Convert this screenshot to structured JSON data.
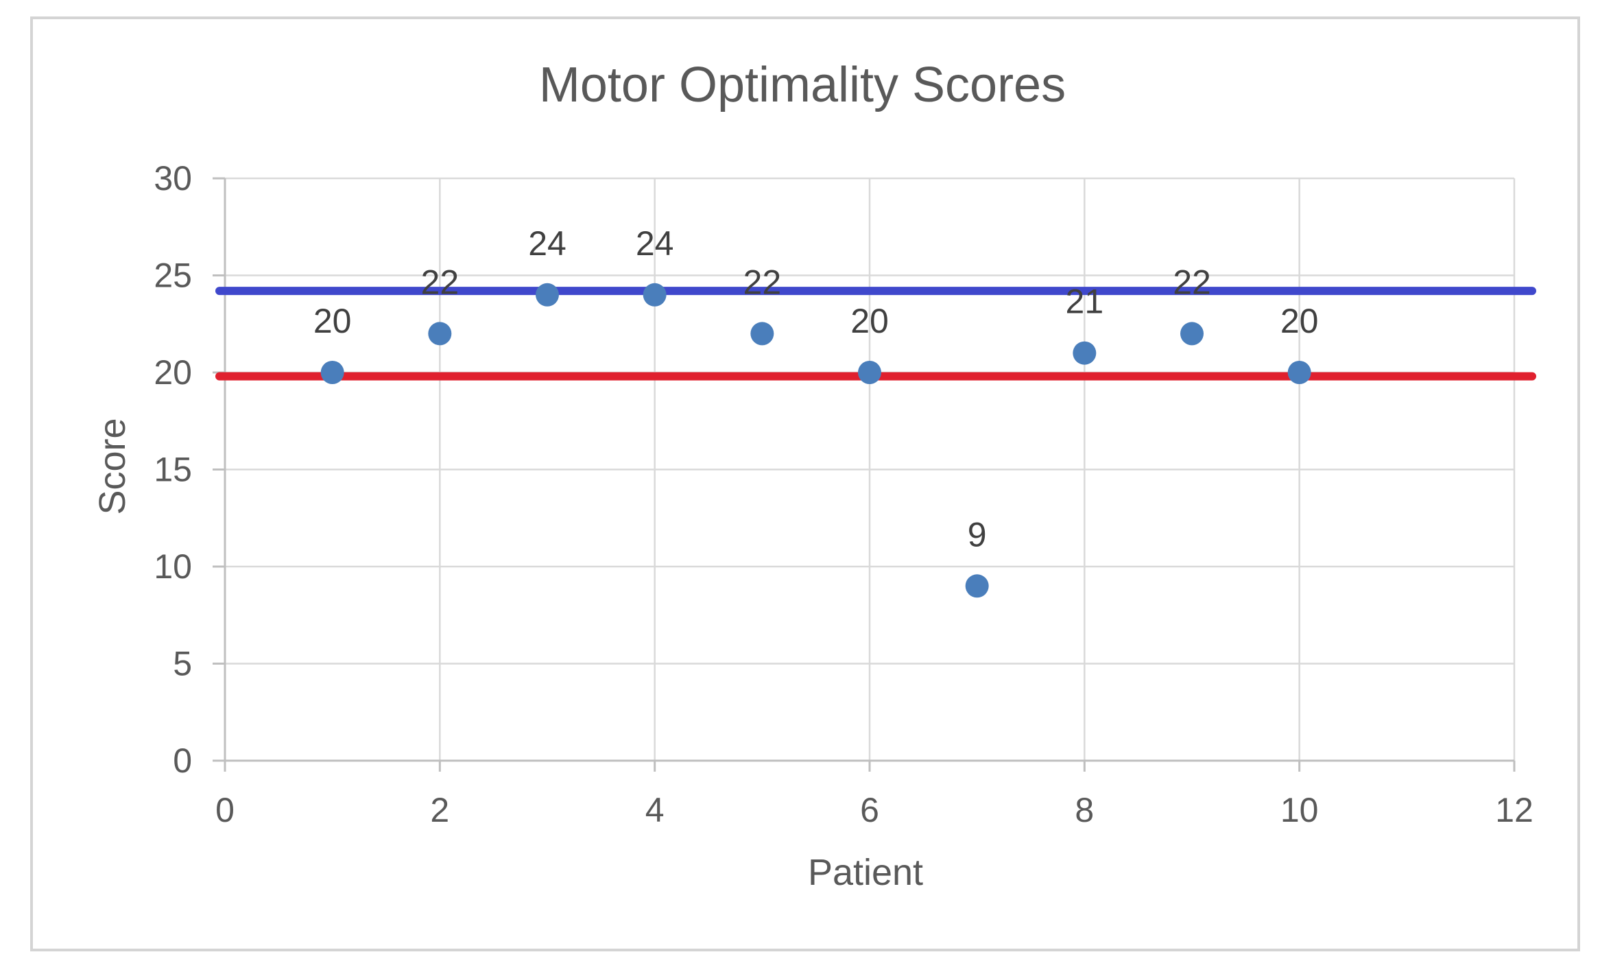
{
  "chart_data": {
    "type": "scatter",
    "title": "Motor Optimality Scores",
    "xlabel": "Patient",
    "ylabel": "Score",
    "xlim": [
      0,
      12
    ],
    "ylim": [
      0,
      30
    ],
    "x_ticks": [
      0,
      2,
      4,
      6,
      8,
      10,
      12
    ],
    "y_ticks": [
      0,
      5,
      10,
      15,
      20,
      25,
      30
    ],
    "grid": true,
    "legend": "none",
    "series": [
      {
        "x": [
          1,
          2,
          3,
          4,
          5,
          6,
          7,
          8,
          9,
          10
        ],
        "y": [
          20,
          22,
          24,
          24,
          22,
          20,
          9,
          21,
          22,
          20
        ],
        "labels": [
          "20",
          "22",
          "24",
          "24",
          "22",
          "20",
          "9",
          "21",
          "22",
          "20"
        ],
        "color": "#4a7ebb"
      }
    ],
    "reference_lines": [
      {
        "y": 24.2,
        "color": "#3f48cc"
      },
      {
        "y": 19.8,
        "color": "#e0202e"
      }
    ]
  }
}
